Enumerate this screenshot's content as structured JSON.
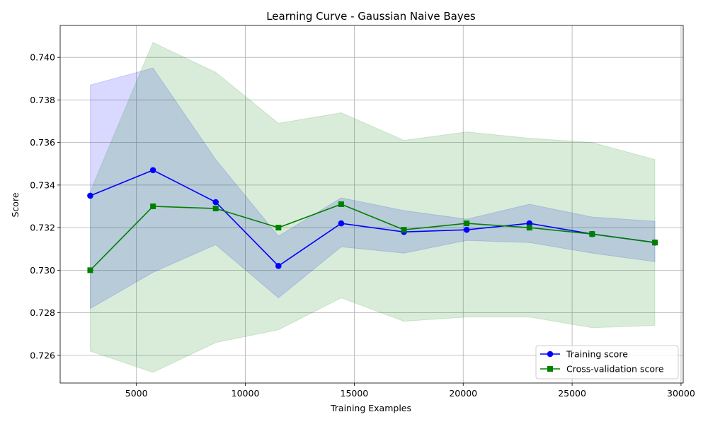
{
  "chart_data": {
    "type": "line",
    "title": "Learning Curve - Gaussian Naive Bayes",
    "xlabel": "Training Examples",
    "ylabel": "Score",
    "xlim": [
      1500,
      30100
    ],
    "ylim": [
      0.7247,
      0.7415
    ],
    "xticks": [
      5000,
      10000,
      15000,
      20000,
      25000,
      30000
    ],
    "yticks": [
      0.726,
      0.728,
      0.73,
      0.732,
      0.734,
      0.736,
      0.738,
      0.74
    ],
    "grid": true,
    "legend_position": "lower-right",
    "x": [
      2880,
      5760,
      8640,
      11520,
      14400,
      17280,
      20160,
      23040,
      25920,
      28800
    ],
    "series": [
      {
        "name": "Training score",
        "color": "#0000ff",
        "marker": "circle",
        "band_color": "#0000ff",
        "values": [
          0.7335,
          0.7347,
          0.7332,
          0.7302,
          0.7322,
          0.7318,
          0.7319,
          0.7322,
          0.7317,
          0.7313
        ],
        "upper": [
          0.7387,
          0.7395,
          0.7352,
          0.7316,
          0.7334,
          0.7328,
          0.7324,
          0.7331,
          0.7325,
          0.7323
        ],
        "lower": [
          0.7282,
          0.7299,
          0.7312,
          0.7287,
          0.7311,
          0.7308,
          0.7314,
          0.7313,
          0.7308,
          0.7304
        ]
      },
      {
        "name": "Cross-validation score",
        "color": "#008000",
        "marker": "square",
        "band_color": "#008000",
        "values": [
          0.73,
          0.733,
          0.7329,
          0.732,
          0.7331,
          0.7319,
          0.7322,
          0.732,
          0.7317,
          0.7313
        ],
        "upper": [
          0.7337,
          0.7407,
          0.7393,
          0.7369,
          0.7374,
          0.7361,
          0.7365,
          0.7362,
          0.736,
          0.7352
        ],
        "lower": [
          0.7262,
          0.7252,
          0.7266,
          0.7272,
          0.7287,
          0.7276,
          0.7278,
          0.7278,
          0.7273,
          0.7274
        ]
      }
    ]
  }
}
